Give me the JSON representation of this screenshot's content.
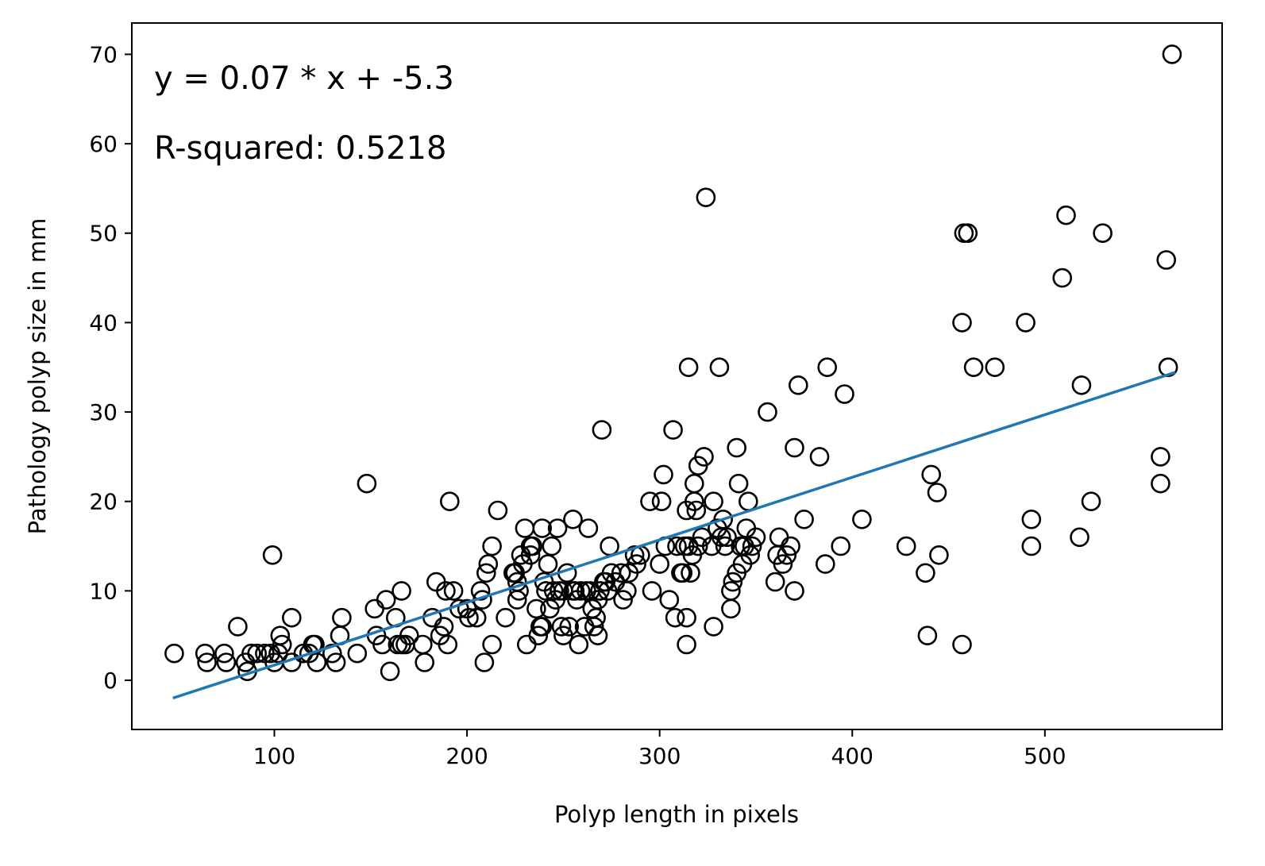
{
  "chart_data": {
    "type": "scatter",
    "title": "",
    "xlabel": "Polyp length in pixels",
    "ylabel": "Pathology polyp size in mm",
    "xlim": [
      26,
      592
    ],
    "ylim": [
      -5.5,
      73.5
    ],
    "x_ticks": [
      100,
      200,
      300,
      400,
      500
    ],
    "y_ticks": [
      0,
      10,
      20,
      30,
      40,
      50,
      60,
      70
    ],
    "grid": false,
    "legend": "none",
    "colors": {
      "points_edge": "#000000",
      "points_fill": "none",
      "fit_line": "#1f77b4",
      "frame": "#000000"
    },
    "annotations": [
      {
        "text": "y = 0.07 * x + -5.3"
      },
      {
        "text": "R-squared: 0.5218"
      }
    ],
    "fit_line": {
      "slope": 0.07,
      "intercept": -5.3,
      "x_range": [
        48,
        567
      ]
    },
    "points": [
      [
        48,
        3
      ],
      [
        64,
        3
      ],
      [
        65,
        2
      ],
      [
        74,
        3
      ],
      [
        75,
        2
      ],
      [
        81,
        6
      ],
      [
        85,
        2
      ],
      [
        86,
        1
      ],
      [
        88,
        3
      ],
      [
        91,
        3
      ],
      [
        95,
        3
      ],
      [
        98,
        3
      ],
      [
        100,
        2
      ],
      [
        99,
        14
      ],
      [
        102,
        3
      ],
      [
        103,
        5
      ],
      [
        104,
        4
      ],
      [
        109,
        2
      ],
      [
        109,
        7
      ],
      [
        115,
        3
      ],
      [
        118,
        3
      ],
      [
        120,
        4
      ],
      [
        121,
        4
      ],
      [
        122,
        2
      ],
      [
        130,
        3
      ],
      [
        132,
        2
      ],
      [
        134,
        5
      ],
      [
        135,
        7
      ],
      [
        143,
        3
      ],
      [
        148,
        22
      ],
      [
        152,
        8
      ],
      [
        153,
        5
      ],
      [
        156,
        4
      ],
      [
        158,
        9
      ],
      [
        160,
        1
      ],
      [
        163,
        7
      ],
      [
        164,
        4
      ],
      [
        166,
        4
      ],
      [
        166,
        10
      ],
      [
        168,
        4
      ],
      [
        170,
        5
      ],
      [
        177,
        4
      ],
      [
        178,
        2
      ],
      [
        182,
        7
      ],
      [
        184,
        11
      ],
      [
        186,
        5
      ],
      [
        188,
        6
      ],
      [
        189,
        10
      ],
      [
        190,
        4
      ],
      [
        191,
        20
      ],
      [
        193,
        10
      ],
      [
        196,
        8
      ],
      [
        200,
        8
      ],
      [
        201,
        7
      ],
      [
        205,
        7
      ],
      [
        207,
        10
      ],
      [
        208,
        9
      ],
      [
        209,
        2
      ],
      [
        210,
        12
      ],
      [
        211,
        13
      ],
      [
        213,
        4
      ],
      [
        213,
        15
      ],
      [
        216,
        19
      ],
      [
        220,
        7
      ],
      [
        224,
        12
      ],
      [
        225,
        12
      ],
      [
        226,
        11
      ],
      [
        226,
        9
      ],
      [
        227,
        10
      ],
      [
        228,
        14
      ],
      [
        229,
        13
      ],
      [
        230,
        17
      ],
      [
        231,
        4
      ],
      [
        233,
        14
      ],
      [
        233,
        15
      ],
      [
        234,
        15
      ],
      [
        236,
        8
      ],
      [
        237,
        5
      ],
      [
        238,
        6
      ],
      [
        239,
        6
      ],
      [
        239,
        17
      ],
      [
        240,
        11
      ],
      [
        241,
        10
      ],
      [
        242,
        13
      ],
      [
        243,
        8
      ],
      [
        244,
        15
      ],
      [
        245,
        10
      ],
      [
        246,
        9
      ],
      [
        247,
        17
      ],
      [
        248,
        10
      ],
      [
        249,
        6
      ],
      [
        250,
        5
      ],
      [
        250,
        10
      ],
      [
        252,
        12
      ],
      [
        253,
        6
      ],
      [
        255,
        18
      ],
      [
        255,
        10
      ],
      [
        256,
        10
      ],
      [
        257,
        9
      ],
      [
        258,
        4
      ],
      [
        259,
        10
      ],
      [
        261,
        6
      ],
      [
        262,
        10
      ],
      [
        263,
        17
      ],
      [
        264,
        10
      ],
      [
        265,
        8
      ],
      [
        266,
        6
      ],
      [
        267,
        7
      ],
      [
        268,
        5
      ],
      [
        268,
        9
      ],
      [
        269,
        10
      ],
      [
        270,
        28
      ],
      [
        271,
        11
      ],
      [
        272,
        11
      ],
      [
        273,
        10
      ],
      [
        274,
        15
      ],
      [
        275,
        12
      ],
      [
        277,
        11
      ],
      [
        280,
        12
      ],
      [
        281,
        9
      ],
      [
        283,
        10
      ],
      [
        284,
        12
      ],
      [
        287,
        14
      ],
      [
        288,
        13
      ],
      [
        290,
        14
      ],
      [
        295,
        20
      ],
      [
        296,
        10
      ],
      [
        300,
        13
      ],
      [
        301,
        20
      ],
      [
        302,
        23
      ],
      [
        303,
        15
      ],
      [
        305,
        9
      ],
      [
        307,
        28
      ],
      [
        308,
        7
      ],
      [
        309,
        15
      ],
      [
        311,
        12
      ],
      [
        312,
        12
      ],
      [
        313,
        15
      ],
      [
        314,
        19
      ],
      [
        314,
        4
      ],
      [
        314,
        7
      ],
      [
        315,
        15
      ],
      [
        315,
        35
      ],
      [
        316,
        12
      ],
      [
        317,
        14
      ],
      [
        318,
        20
      ],
      [
        318,
        22
      ],
      [
        319,
        19
      ],
      [
        320,
        15
      ],
      [
        320,
        24
      ],
      [
        322,
        16
      ],
      [
        323,
        25
      ],
      [
        324,
        54
      ],
      [
        327,
        15
      ],
      [
        328,
        20
      ],
      [
        328,
        6
      ],
      [
        330,
        17
      ],
      [
        331,
        35
      ],
      [
        332,
        16
      ],
      [
        333,
        18
      ],
      [
        334,
        15
      ],
      [
        335,
        16
      ],
      [
        337,
        8
      ],
      [
        337,
        10
      ],
      [
        338,
        11
      ],
      [
        340,
        12
      ],
      [
        340,
        26
      ],
      [
        341,
        22
      ],
      [
        342,
        15
      ],
      [
        343,
        13
      ],
      [
        344,
        15
      ],
      [
        345,
        17
      ],
      [
        346,
        20
      ],
      [
        347,
        14
      ],
      [
        348,
        15
      ],
      [
        350,
        16
      ],
      [
        356,
        30
      ],
      [
        360,
        11
      ],
      [
        361,
        14
      ],
      [
        362,
        16
      ],
      [
        364,
        13
      ],
      [
        366,
        14
      ],
      [
        368,
        15
      ],
      [
        370,
        10
      ],
      [
        370,
        26
      ],
      [
        372,
        33
      ],
      [
        375,
        18
      ],
      [
        383,
        25
      ],
      [
        386,
        13
      ],
      [
        387,
        35
      ],
      [
        394,
        15
      ],
      [
        396,
        32
      ],
      [
        405,
        18
      ],
      [
        428,
        15
      ],
      [
        438,
        12
      ],
      [
        439,
        5
      ],
      [
        441,
        23
      ],
      [
        444,
        21
      ],
      [
        445,
        14
      ],
      [
        457,
        4
      ],
      [
        457,
        40
      ],
      [
        458,
        50
      ],
      [
        460,
        50
      ],
      [
        463,
        35
      ],
      [
        474,
        35
      ],
      [
        490,
        40
      ],
      [
        493,
        18
      ],
      [
        493,
        15
      ],
      [
        509,
        45
      ],
      [
        511,
        52
      ],
      [
        518,
        16
      ],
      [
        519,
        33
      ],
      [
        524,
        20
      ],
      [
        530,
        50
      ],
      [
        560,
        25
      ],
      [
        560,
        22
      ],
      [
        563,
        47
      ],
      [
        564,
        35
      ],
      [
        566,
        70
      ]
    ]
  }
}
